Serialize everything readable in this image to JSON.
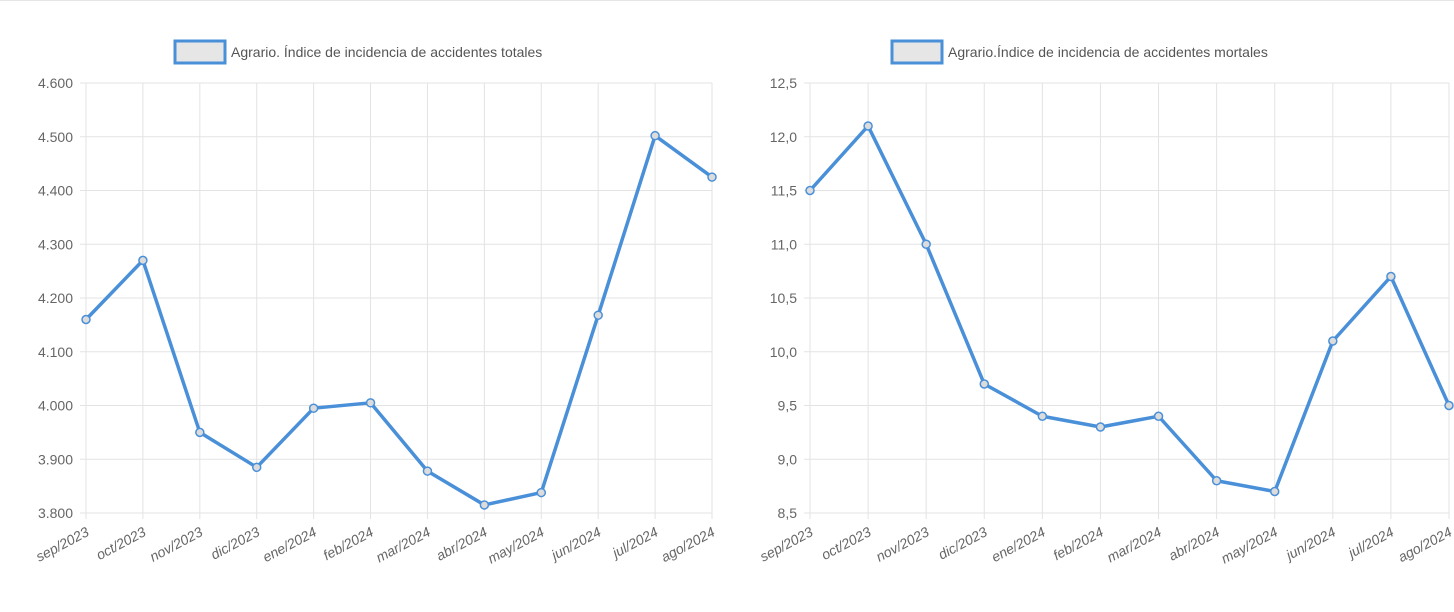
{
  "colors": {
    "line": "#4a90d9",
    "grid": "#e3e3e3",
    "legend_fill": "#e6e6e6",
    "text": "#666666"
  },
  "chart_data": [
    {
      "type": "line",
      "legend": "Agrario. Índice de incidencia de accidentes totales",
      "legend_position": "top",
      "grid": true,
      "categories": [
        "sep/2023",
        "oct/2023",
        "nov/2023",
        "dic/2023",
        "ene/2024",
        "feb/2024",
        "mar/2024",
        "abr/2024",
        "may/2024",
        "jun/2024",
        "jul/2024",
        "ago/2024"
      ],
      "values": [
        4160,
        4270,
        3950,
        3885,
        3995,
        4005,
        3878,
        3815,
        3838,
        4168,
        4502,
        4425
      ],
      "ylim": [
        3800,
        4600
      ],
      "yticks": [
        "4.600",
        "4.500",
        "4.400",
        "4.300",
        "4.200",
        "4.100",
        "4.000",
        "3.900",
        "3.800"
      ],
      "series": [
        {
          "name": "Agrario. Índice de incidencia de accidentes totales",
          "values": [
            4160,
            4270,
            3950,
            3885,
            3995,
            4005,
            3878,
            3815,
            3838,
            4168,
            4502,
            4425
          ]
        }
      ]
    },
    {
      "type": "line",
      "legend": "Agrario.Índice de incidencia de accidentes mortales",
      "legend_position": "top",
      "grid": true,
      "categories": [
        "sep/2023",
        "oct/2023",
        "nov/2023",
        "dic/2023",
        "ene/2024",
        "feb/2024",
        "mar/2024",
        "abr/2024",
        "may/2024",
        "jun/2024",
        "jul/2024",
        "ago/2024"
      ],
      "values": [
        11.5,
        12.1,
        11.0,
        9.7,
        9.4,
        9.3,
        9.4,
        8.8,
        8.7,
        10.1,
        10.7,
        9.5
      ],
      "ylim": [
        8.5,
        12.5
      ],
      "yticks": [
        "12,5",
        "12,0",
        "11,5",
        "11,0",
        "10,5",
        "10,0",
        "9,5",
        "9,0",
        "8,5"
      ],
      "series": [
        {
          "name": "Agrario.Índice de incidencia de accidentes mortales",
          "values": [
            11.5,
            12.1,
            11.0,
            9.7,
            9.4,
            9.3,
            9.4,
            8.8,
            8.7,
            10.1,
            10.7,
            9.5
          ]
        }
      ]
    }
  ]
}
